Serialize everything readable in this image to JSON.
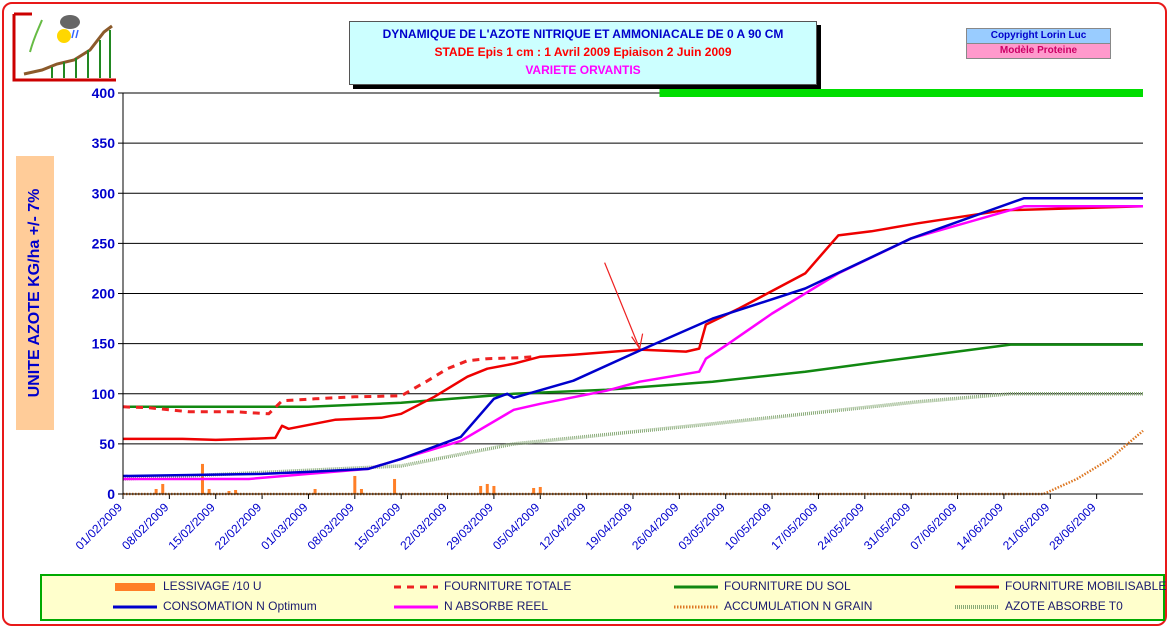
{
  "header": {
    "title_line1": "DYNAMIQUE DE L'AZOTE NITRIQUE ET AMMONIACALE DE 0 A 90 CM",
    "title_line2": "STADE Epis 1 cm : 1 Avril 2009  Epiaison  2 Juin 2009",
    "title_line3": "VARIETE ORVANTIS",
    "copyright": "Copyright Lorin Luc",
    "model": "Modèle Proteine"
  },
  "colors": {
    "frame": "#e81919",
    "fourniture_totale": "#ee2222",
    "fourniture_sol": "#118811",
    "fourniture_mobilisable": "#ee0000",
    "consomation": "#0000cc",
    "absorbe_reel": "#ff00ff",
    "accumulation": "#dd7722",
    "azote_t0": "#88aa77",
    "lessivage": "#ff7f27",
    "green_bar": "#00dd00"
  },
  "chart_data": {
    "type": "line",
    "ylabel": "UNITE AZOTE KG/ha  +/- 7%",
    "ylim": [
      0,
      400
    ],
    "yticks": [
      "0",
      "50",
      "100",
      "150",
      "200",
      "250",
      "300",
      "350",
      "400"
    ],
    "x_start": "01/02/2009",
    "x_end": "05/07/2009",
    "xticks": [
      "01/02/2009",
      "08/02/2009",
      "15/02/2009",
      "22/02/2009",
      "01/03/2009",
      "08/03/2009",
      "15/03/2009",
      "22/03/2009",
      "29/03/2009",
      "05/04/2009",
      "12/04/2009",
      "19/04/2009",
      "26/04/2009",
      "03/05/2009",
      "10/05/2009",
      "17/05/2009",
      "24/05/2009",
      "31/05/2009",
      "07/06/2009",
      "14/06/2009",
      "21/06/2009",
      "28/06/2009"
    ],
    "grid": true,
    "green_bar_from": "23/04/2009",
    "arrow_to": {
      "x": "20/04/2009",
      "y": 143
    },
    "series": [
      {
        "name": "FOURNITURE TOTALE",
        "key": "fourniture_totale",
        "style": "dashed",
        "points": [
          [
            "01/02/2009",
            87
          ],
          [
            "05/02/2009",
            86
          ],
          [
            "11/02/2009",
            82
          ],
          [
            "18/02/2009",
            82
          ],
          [
            "23/02/2009",
            80
          ],
          [
            "25/02/2009",
            93
          ],
          [
            "02/03/2009",
            95
          ],
          [
            "08/03/2009",
            97
          ],
          [
            "15/03/2009",
            98
          ],
          [
            "19/03/2009",
            113
          ],
          [
            "22/03/2009",
            125
          ],
          [
            "25/03/2009",
            133
          ],
          [
            "28/03/2009",
            135
          ],
          [
            "02/04/2009",
            136
          ],
          [
            "04/04/2009",
            137
          ]
        ]
      },
      {
        "name": "FOURNITURE DU SOL",
        "key": "fourniture_sol",
        "style": "solid",
        "points": [
          [
            "01/02/2009",
            87
          ],
          [
            "01/03/2009",
            87
          ],
          [
            "15/03/2009",
            91
          ],
          [
            "01/04/2009",
            100
          ],
          [
            "15/04/2009",
            104
          ],
          [
            "01/05/2009",
            112
          ],
          [
            "15/05/2009",
            122
          ],
          [
            "01/06/2009",
            137
          ],
          [
            "15/06/2009",
            149
          ],
          [
            "05/07/2009",
            149
          ]
        ]
      },
      {
        "name": "FOURNITURE MOBILISABLE",
        "key": "fourniture_mobilisable",
        "style": "solid",
        "points": [
          [
            "01/02/2009",
            55
          ],
          [
            "10/02/2009",
            55
          ],
          [
            "15/02/2009",
            54
          ],
          [
            "20/02/2009",
            55
          ],
          [
            "24/02/2009",
            56
          ],
          [
            "25/02/2009",
            68
          ],
          [
            "26/02/2009",
            65
          ],
          [
            "05/03/2009",
            74
          ],
          [
            "12/03/2009",
            76
          ],
          [
            "15/03/2009",
            80
          ],
          [
            "20/03/2009",
            97
          ],
          [
            "25/03/2009",
            117
          ],
          [
            "28/03/2009",
            125
          ],
          [
            "01/04/2009",
            130
          ],
          [
            "05/04/2009",
            137
          ],
          [
            "10/04/2009",
            139
          ],
          [
            "20/04/2009",
            144
          ],
          [
            "27/04/2009",
            142
          ],
          [
            "29/04/2009",
            145
          ],
          [
            "30/04/2009",
            169
          ],
          [
            "05/05/2009",
            185
          ],
          [
            "15/05/2009",
            220
          ],
          [
            "20/05/2009",
            258
          ],
          [
            "25/05/2009",
            262
          ],
          [
            "01/06/2009",
            270
          ],
          [
            "14/06/2009",
            283
          ],
          [
            "05/07/2009",
            287
          ]
        ]
      },
      {
        "name": "CONSOMATION N Optimum",
        "key": "consomation",
        "style": "solid",
        "points": [
          [
            "01/02/2009",
            18
          ],
          [
            "22/02/2009",
            20
          ],
          [
            "01/03/2009",
            22
          ],
          [
            "10/03/2009",
            25
          ],
          [
            "15/03/2009",
            35
          ],
          [
            "24/03/2009",
            57
          ],
          [
            "29/03/2009",
            95
          ],
          [
            "31/03/2009",
            100
          ],
          [
            "01/04/2009",
            96
          ],
          [
            "10/04/2009",
            113
          ],
          [
            "20/04/2009",
            143
          ],
          [
            "01/05/2009",
            175
          ],
          [
            "15/05/2009",
            205
          ],
          [
            "31/05/2009",
            255
          ],
          [
            "17/06/2009",
            295
          ],
          [
            "05/07/2009",
            295
          ]
        ]
      },
      {
        "name": "N ABSORBE REEL",
        "key": "absorbe_reel",
        "style": "solid",
        "points": [
          [
            "01/02/2009",
            15
          ],
          [
            "20/02/2009",
            15
          ],
          [
            "01/03/2009",
            20
          ],
          [
            "10/03/2009",
            25
          ],
          [
            "24/03/2009",
            53
          ],
          [
            "01/04/2009",
            84
          ],
          [
            "05/04/2009",
            90
          ],
          [
            "15/04/2009",
            103
          ],
          [
            "20/04/2009",
            112
          ],
          [
            "29/04/2009",
            122
          ],
          [
            "30/04/2009",
            135
          ],
          [
            "03/05/2009",
            148
          ],
          [
            "10/05/2009",
            180
          ],
          [
            "20/05/2009",
            220
          ],
          [
            "31/05/2009",
            255
          ],
          [
            "17/06/2009",
            287
          ],
          [
            "05/07/2009",
            287
          ]
        ]
      },
      {
        "name": "ACCUMULATION N GRAIN",
        "key": "accumulation",
        "style": "dotted",
        "points": [
          [
            "01/02/2009",
            0
          ],
          [
            "20/06/2009",
            0
          ],
          [
            "25/06/2009",
            15
          ],
          [
            "30/06/2009",
            35
          ],
          [
            "05/07/2009",
            63
          ]
        ]
      },
      {
        "name": "AZOTE ABSORBE T0",
        "key": "azote_t0",
        "style": "textured",
        "points": [
          [
            "01/02/2009",
            15
          ],
          [
            "15/03/2009",
            28
          ],
          [
            "01/04/2009",
            50
          ],
          [
            "01/05/2009",
            70
          ],
          [
            "01/06/2009",
            92
          ],
          [
            "15/06/2009",
            100
          ],
          [
            "05/07/2009",
            100
          ]
        ]
      }
    ],
    "bars": {
      "name": "LESSIVAGE /10 U",
      "key": "lessivage",
      "points": [
        [
          "06/02/2009",
          5
        ],
        [
          "07/02/2009",
          10
        ],
        [
          "13/02/2009",
          30
        ],
        [
          "14/02/2009",
          5
        ],
        [
          "17/02/2009",
          3
        ],
        [
          "18/02/2009",
          4
        ],
        [
          "02/03/2009",
          5
        ],
        [
          "08/03/2009",
          18
        ],
        [
          "09/03/2009",
          5
        ],
        [
          "14/03/2009",
          15
        ],
        [
          "27/03/2009",
          8
        ],
        [
          "28/03/2009",
          10
        ],
        [
          "29/03/2009",
          8
        ],
        [
          "04/04/2009",
          6
        ],
        [
          "05/04/2009",
          7
        ]
      ]
    }
  },
  "legend": {
    "items": [
      {
        "key": "lessivage",
        "label": "LESSIVAGE /10 U"
      },
      {
        "key": "fourniture_totale",
        "label": "FOURNITURE TOTALE"
      },
      {
        "key": "fourniture_sol",
        "label": "FOURNITURE DU SOL"
      },
      {
        "key": "fourniture_mobilisable",
        "label": "FOURNITURE MOBILISABLE"
      },
      {
        "key": "consomation",
        "label": "CONSOMATION N Optimum"
      },
      {
        "key": "absorbe_reel",
        "label": "N ABSORBE REEL"
      },
      {
        "key": "accumulation",
        "label": "ACCUMULATION N GRAIN"
      },
      {
        "key": "azote_t0",
        "label": "AZOTE ABSORBE T0"
      }
    ]
  }
}
